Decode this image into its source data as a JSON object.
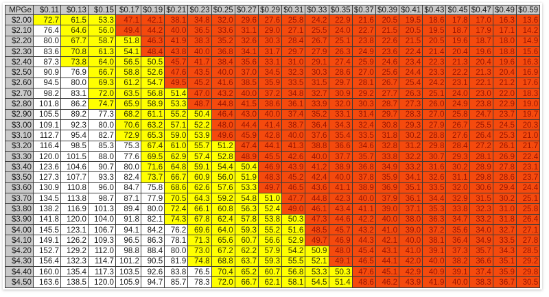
{
  "table": {
    "corner_label": "MPGe",
    "columns": [
      "$0.11",
      "$0.13",
      "$0.15",
      "$0.17",
      "$0.19",
      "$0.21",
      "$0.23",
      "$0.25",
      "$0.27",
      "$0.29",
      "$0.31",
      "$0.33",
      "$0.35",
      "$0.37",
      "$0.39",
      "$0.41",
      "$0.43",
      "$0.45",
      "$0.47",
      "$0.49",
      "$0.59"
    ],
    "rows": [
      {
        "label": "$2.00",
        "values": [
          "72.7",
          "61.5",
          "53.3",
          "47.1",
          "42.1",
          "38.1",
          "34.8",
          "32.0",
          "29.6",
          "27.6",
          "25.8",
          "24.2",
          "22.9",
          "21.6",
          "20.5",
          "19.5",
          "18.6",
          "17.8",
          "17.0",
          "16.3",
          "13.6"
        ]
      },
      {
        "label": "$2.10",
        "values": [
          "76.4",
          "64.6",
          "56.0",
          "49.4",
          "44.2",
          "40.0",
          "36.5",
          "33.6",
          "31.1",
          "29.0",
          "27.1",
          "25.5",
          "24.0",
          "22.7",
          "21.5",
          "20.5",
          "19.5",
          "18.7",
          "17.9",
          "17.1",
          "14.2"
        ]
      },
      {
        "label": "$2.20",
        "values": [
          "80.0",
          "67.7",
          "58.7",
          "51.8",
          "46.3",
          "41.9",
          "38.3",
          "35.2",
          "32.6",
          "30.3",
          "28.4",
          "26.7",
          "25.1",
          "23.8",
          "22.6",
          "21.5",
          "20.5",
          "19.6",
          "18.7",
          "18.0",
          "14.9"
        ]
      },
      {
        "label": "$2.30",
        "values": [
          "83.6",
          "70.8",
          "61.3",
          "54.1",
          "48.4",
          "43.8",
          "40.0",
          "36.8",
          "34.1",
          "31.7",
          "29.7",
          "27.9",
          "26.3",
          "24.9",
          "23.6",
          "22.4",
          "21.4",
          "20.4",
          "19.6",
          "18.8",
          "15.6"
        ]
      },
      {
        "label": "$2.40",
        "values": [
          "87.3",
          "73.8",
          "64.0",
          "56.5",
          "50.5",
          "45.7",
          "41.7",
          "38.4",
          "35.6",
          "33.1",
          "31.0",
          "29.1",
          "27.4",
          "25.9",
          "24.6",
          "23.4",
          "22.3",
          "21.3",
          "20.4",
          "19.6",
          "16.3"
        ]
      },
      {
        "label": "$2.50",
        "values": [
          "90.9",
          "76.9",
          "66.7",
          "58.8",
          "52.6",
          "47.6",
          "43.5",
          "40.0",
          "37.0",
          "34.5",
          "32.3",
          "30.3",
          "28.6",
          "27.0",
          "25.6",
          "24.4",
          "23.3",
          "22.2",
          "21.3",
          "20.4",
          "16.9"
        ]
      },
      {
        "label": "$2.60",
        "values": [
          "94.5",
          "80.0",
          "69.3",
          "61.2",
          "54.7",
          "49.5",
          "45.2",
          "41.6",
          "38.5",
          "35.9",
          "33.5",
          "31.5",
          "29.7",
          "28.1",
          "26.7",
          "25.4",
          "24.2",
          "23.1",
          "22.1",
          "21.2",
          "17.6"
        ]
      },
      {
        "label": "$2.70",
        "values": [
          "98.2",
          "83.1",
          "72.0",
          "63.5",
          "56.8",
          "51.4",
          "47.0",
          "43.2",
          "40.0",
          "37.2",
          "34.8",
          "32.7",
          "30.9",
          "29.2",
          "27.7",
          "26.3",
          "25.1",
          "24.0",
          "23.0",
          "22.0",
          "18.3"
        ]
      },
      {
        "label": "$2.80",
        "values": [
          "101.8",
          "86.2",
          "74.7",
          "65.9",
          "58.9",
          "53.3",
          "48.7",
          "44.8",
          "41.5",
          "38.6",
          "36.1",
          "33.9",
          "32.0",
          "30.3",
          "28.7",
          "27.3",
          "26.0",
          "24.9",
          "23.8",
          "22.9",
          "19.0"
        ]
      },
      {
        "label": "$2.90",
        "values": [
          "105.5",
          "89.2",
          "77.3",
          "68.2",
          "61.1",
          "55.2",
          "50.4",
          "46.4",
          "43.0",
          "40.0",
          "37.4",
          "35.2",
          "33.1",
          "31.4",
          "29.7",
          "28.3",
          "27.0",
          "25.8",
          "24.7",
          "23.7",
          "19.7"
        ]
      },
      {
        "label": "$3.00",
        "values": [
          "109.1",
          "92.3",
          "80.0",
          "70.6",
          "63.2",
          "57.1",
          "52.2",
          "48.0",
          "44.4",
          "41.4",
          "38.7",
          "36.4",
          "34.3",
          "32.4",
          "30.8",
          "29.3",
          "27.9",
          "26.7",
          "25.5",
          "24.5",
          "20.3"
        ]
      },
      {
        "label": "$3.10",
        "values": [
          "112.7",
          "95.4",
          "82.7",
          "72.9",
          "65.3",
          "59.0",
          "53.9",
          "49.6",
          "45.9",
          "42.8",
          "40.0",
          "37.6",
          "35.4",
          "33.5",
          "31.8",
          "30.2",
          "28.8",
          "27.6",
          "26.4",
          "25.3",
          "21.0"
        ]
      },
      {
        "label": "$3.20",
        "values": [
          "116.4",
          "98.5",
          "85.3",
          "75.3",
          "67.4",
          "61.0",
          "55.7",
          "51.2",
          "47.4",
          "44.1",
          "41.3",
          "38.8",
          "36.6",
          "34.6",
          "32.8",
          "31.2",
          "29.8",
          "28.4",
          "27.2",
          "26.1",
          "21.7"
        ]
      },
      {
        "label": "$3.30",
        "values": [
          "120.0",
          "101.5",
          "88.0",
          "77.6",
          "69.5",
          "62.9",
          "57.4",
          "52.8",
          "48.9",
          "45.5",
          "42.6",
          "40.0",
          "37.7",
          "35.7",
          "33.8",
          "32.2",
          "30.7",
          "29.3",
          "28.1",
          "26.9",
          "22.4"
        ]
      },
      {
        "label": "$3.40",
        "values": [
          "123.6",
          "104.6",
          "90.7",
          "80.0",
          "71.6",
          "64.8",
          "59.1",
          "54.4",
          "50.4",
          "46.9",
          "43.9",
          "41.2",
          "38.9",
          "36.8",
          "34.9",
          "33.2",
          "31.6",
          "30.2",
          "28.9",
          "27.8",
          "23.1"
        ]
      },
      {
        "label": "$3.50",
        "values": [
          "127.3",
          "107.7",
          "93.3",
          "82.4",
          "73.7",
          "66.7",
          "60.9",
          "56.0",
          "51.9",
          "48.3",
          "45.2",
          "42.4",
          "40.0",
          "37.8",
          "35.9",
          "34.1",
          "32.6",
          "31.1",
          "29.8",
          "28.6",
          "23.7"
        ]
      },
      {
        "label": "$3.60",
        "values": [
          "130.9",
          "110.8",
          "96.0",
          "84.7",
          "75.8",
          "68.6",
          "62.6",
          "57.6",
          "53.3",
          "49.7",
          "46.5",
          "43.6",
          "41.1",
          "38.9",
          "36.9",
          "35.1",
          "33.5",
          "32.0",
          "30.6",
          "29.4",
          "24.4"
        ]
      },
      {
        "label": "$3.70",
        "values": [
          "134.5",
          "113.8",
          "98.7",
          "87.1",
          "77.9",
          "70.5",
          "64.3",
          "59.2",
          "54.8",
          "51.0",
          "47.7",
          "44.8",
          "42.3",
          "40.0",
          "37.9",
          "36.1",
          "34.4",
          "32.9",
          "31.5",
          "30.2",
          "25.1"
        ]
      },
      {
        "label": "$3.80",
        "values": [
          "138.2",
          "116.9",
          "101.3",
          "89.4",
          "80.0",
          "72.4",
          "66.1",
          "60.8",
          "56.3",
          "52.4",
          "49.0",
          "46.1",
          "43.4",
          "41.1",
          "39.0",
          "37.1",
          "35.3",
          "33.8",
          "32.3",
          "31.0",
          "25.8"
        ]
      },
      {
        "label": "$3.90",
        "values": [
          "141.8",
          "120.0",
          "104.0",
          "91.8",
          "82.1",
          "74.3",
          "67.8",
          "62.4",
          "57.8",
          "53.8",
          "50.3",
          "47.3",
          "44.6",
          "42.2",
          "40.0",
          "38.0",
          "36.3",
          "34.7",
          "33.2",
          "31.8",
          "26.4"
        ]
      },
      {
        "label": "$4.00",
        "values": [
          "145.5",
          "123.1",
          "106.7",
          "94.1",
          "84.2",
          "76.2",
          "69.6",
          "64.0",
          "59.3",
          "55.2",
          "51.6",
          "48.5",
          "45.7",
          "43.2",
          "41.0",
          "39.0",
          "37.2",
          "35.6",
          "34.0",
          "32.7",
          "27.1"
        ]
      },
      {
        "label": "$4.10",
        "values": [
          "149.1",
          "126.2",
          "109.3",
          "96.5",
          "86.3",
          "78.1",
          "71.3",
          "65.6",
          "60.7",
          "56.6",
          "52.9",
          "49.7",
          "46.9",
          "44.3",
          "42.1",
          "40.0",
          "38.1",
          "36.4",
          "34.9",
          "33.5",
          "27.8"
        ]
      },
      {
        "label": "$4.20",
        "values": [
          "152.7",
          "129.2",
          "112.0",
          "98.8",
          "88.4",
          "80.0",
          "73.0",
          "67.2",
          "62.2",
          "57.9",
          "54.2",
          "50.9",
          "48.0",
          "45.4",
          "43.1",
          "41.0",
          "39.1",
          "37.3",
          "35.7",
          "34.3",
          "28.5"
        ]
      },
      {
        "label": "$4.30",
        "values": [
          "156.4",
          "132.3",
          "114.7",
          "101.2",
          "90.5",
          "81.9",
          "74.8",
          "68.8",
          "63.7",
          "59.3",
          "55.5",
          "52.1",
          "49.1",
          "46.5",
          "44.1",
          "42.0",
          "40.0",
          "38.2",
          "36.6",
          "35.1",
          "29.2"
        ]
      },
      {
        "label": "$4.40",
        "values": [
          "160.0",
          "135.4",
          "117.3",
          "103.5",
          "92.6",
          "83.8",
          "76.5",
          "70.4",
          "65.2",
          "60.7",
          "56.8",
          "53.3",
          "50.3",
          "47.6",
          "45.1",
          "42.9",
          "40.9",
          "39.1",
          "37.4",
          "35.9",
          "29.8"
        ]
      },
      {
        "label": "$4.50",
        "values": [
          "163.6",
          "138.5",
          "120.0",
          "105.9",
          "94.7",
          "85.7",
          "78.3",
          "72.0",
          "66.7",
          "62.1",
          "58.1",
          "54.5",
          "51.4",
          "48.6",
          "46.2",
          "43.9",
          "41.9",
          "40.0",
          "38.3",
          "36.7",
          "30.5"
        ]
      }
    ]
  },
  "color_scale": {
    "high": {
      "min": 75,
      "color": "#ffffff"
    },
    "mid": {
      "min": 50,
      "color": "#ffff00"
    },
    "low": {
      "color": "#f54a0d"
    },
    "header_color": "#c9c9c9"
  }
}
